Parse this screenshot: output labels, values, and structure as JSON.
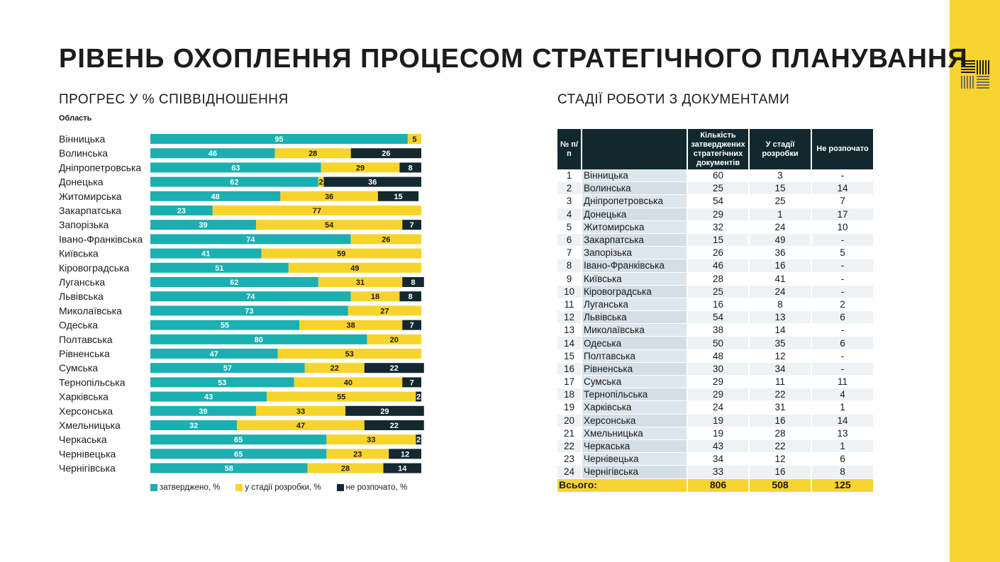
{
  "title": "РІВЕНЬ ОХОПЛЕННЯ ПРОЦЕСОМ СТРАТЕГІЧНОГО ПЛАНУВАННЯ",
  "left_subtitle": "ПРОГРЕС У % СПІВВІДНОШЕННЯ",
  "right_subtitle": "СТАДІЇ РОБОТИ З ДОКУМЕНТАМИ",
  "colors": {
    "teal": "#1bafb1",
    "yellow": "#f7d42c",
    "dark": "#14282f",
    "accent_bar": "#f8d431"
  },
  "chart_data": {
    "type": "bar",
    "orientation": "horizontal",
    "stacked": true,
    "ylabel": "Область",
    "categories": [
      "Вінницька",
      "Волинська",
      "Дніпропетровська",
      "Донецька",
      "Житомирська",
      "Закарпатська",
      "Запорізька",
      "Івано-Франківська",
      "Київська",
      "Кіровоградська",
      "Луганська",
      "Львівська",
      "Миколаївська",
      "Одеська",
      "Полтавська",
      "Рівненська",
      "Сумська",
      "Тернопільська",
      "Харківська",
      "Херсонська",
      "Хмельницька",
      "Черкаська",
      "Чернівецька",
      "Чернігівська"
    ],
    "series": [
      {
        "name": "затверджено, %",
        "color": "#1bafb1",
        "values": [
          95,
          46,
          63,
          62,
          48,
          23,
          39,
          74,
          41,
          51,
          62,
          74,
          73,
          55,
          80,
          47,
          57,
          53,
          43,
          39,
          32,
          65,
          65,
          58
        ]
      },
      {
        "name": "у стадії розробки, %",
        "color": "#f7d42c",
        "values": [
          5,
          28,
          29,
          2,
          36,
          77,
          54,
          26,
          59,
          49,
          31,
          18,
          27,
          38,
          20,
          53,
          22,
          40,
          55,
          33,
          47,
          33,
          23,
          28
        ]
      },
      {
        "name": "не розпочато, %",
        "color": "#14282f",
        "values": [
          0,
          26,
          8,
          36,
          15,
          0,
          7,
          0,
          0,
          0,
          8,
          8,
          0,
          7,
          0,
          0,
          22,
          7,
          2,
          29,
          22,
          2,
          12,
          14
        ]
      }
    ],
    "legend_position": "bottom"
  },
  "table": {
    "headers": [
      "№ п/п",
      "",
      "Кількість затверджених стратегічних документів",
      "У стадії розробки",
      "Не розпочато"
    ],
    "rows": [
      [
        "1",
        "Вінницька",
        "60",
        "3",
        "-"
      ],
      [
        "2",
        "Волинська",
        "25",
        "15",
        "14"
      ],
      [
        "3",
        "Дніпропетровська",
        "54",
        "25",
        "7"
      ],
      [
        "4",
        "Донецька",
        "29",
        "1",
        "17"
      ],
      [
        "5",
        "Житомирська",
        "32",
        "24",
        "10"
      ],
      [
        "6",
        "Закарпатська",
        "15",
        "49",
        "-"
      ],
      [
        "7",
        "Запорізька",
        "26",
        "36",
        "5"
      ],
      [
        "8",
        "Івано-Франківська",
        "46",
        "16",
        "-"
      ],
      [
        "9",
        "Київська",
        "28",
        "41",
        "-"
      ],
      [
        "10",
        "Кіровоградська",
        "25",
        "24",
        "-"
      ],
      [
        "11",
        "Луганська",
        "16",
        "8",
        "2"
      ],
      [
        "12",
        "Львівська",
        "54",
        "13",
        "6"
      ],
      [
        "13",
        "Миколаївська",
        "38",
        "14",
        "-"
      ],
      [
        "14",
        "Одеська",
        "50",
        "35",
        "6"
      ],
      [
        "15",
        "Полтавська",
        "48",
        "12",
        "-"
      ],
      [
        "16",
        "Рівненська",
        "30",
        "34",
        "-"
      ],
      [
        "17",
        "Сумська",
        "29",
        "11",
        "11"
      ],
      [
        "18",
        "Тернопільська",
        "29",
        "22",
        "4"
      ],
      [
        "19",
        "Харківська",
        "24",
        "31",
        "1"
      ],
      [
        "20",
        "Херсонська",
        "19",
        "16",
        "14"
      ],
      [
        "21",
        "Хмельницька",
        "19",
        "28",
        "13"
      ],
      [
        "22",
        "Черкаська",
        "43",
        "22",
        "1"
      ],
      [
        "23",
        "Чернівецька",
        "34",
        "12",
        "6"
      ],
      [
        "24",
        "Чернігівська",
        "33",
        "16",
        "8"
      ]
    ],
    "total": {
      "label": "Всього:",
      "approved": "806",
      "in_progress": "508",
      "not_started": "125"
    }
  }
}
